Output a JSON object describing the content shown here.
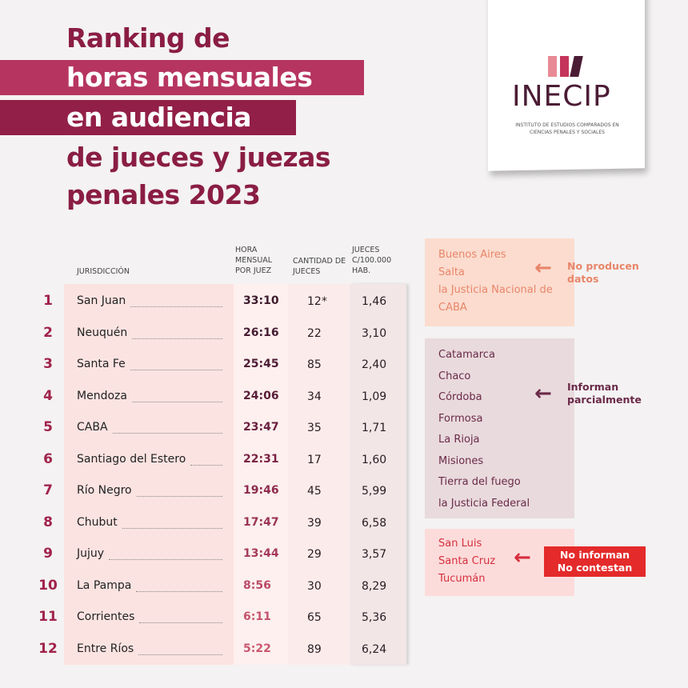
{
  "title": {
    "lines": [
      "Ranking de",
      "horas mensuales",
      "en audiencia",
      "de jueces y juezas",
      "penales 2023"
    ]
  },
  "logo": {
    "name": "INECIP",
    "subtitle": "INSTITUTO DE ESTUDIOS COMPARADOS EN CIENCIAS PENALES Y SOCIALES",
    "bar_colors": [
      "#e88a95",
      "#c5355b",
      "#4b1c35"
    ]
  },
  "table": {
    "headers": {
      "jurisdiccion": "JURISDICCIÓN",
      "hora": "HORA MENSUAL POR JUEZ",
      "cantidad": "CANTIDAD DE JUECES",
      "jueces": "JUECES C/100.000 HAB."
    },
    "rows": [
      {
        "rank": "1",
        "name": "San Juan",
        "hora": "33:10",
        "cantidad": "12*",
        "jueces": "1,46",
        "hora_color": "#3d1a2c"
      },
      {
        "rank": "2",
        "name": "Neuquén",
        "hora": "26:16",
        "cantidad": "22",
        "jueces": "3,10",
        "hora_color": "#451b30"
      },
      {
        "rank": "3",
        "name": "Santa Fe",
        "hora": "25:45",
        "cantidad": "85",
        "jueces": "2,40",
        "hora_color": "#4f1c34"
      },
      {
        "rank": "4",
        "name": "Mendoza",
        "hora": "24:06",
        "cantidad": "34",
        "jueces": "1,09",
        "hora_color": "#5a1d38"
      },
      {
        "rank": "5",
        "name": "CABA",
        "hora": "23:47",
        "cantidad": "35",
        "jueces": "1,71",
        "hora_color": "#6a1f3e"
      },
      {
        "rank": "6",
        "name": "Santiago del Estero",
        "hora": "22:31",
        "cantidad": "17",
        "jueces": "1,60",
        "hora_color": "#7a2244"
      },
      {
        "rank": "7",
        "name": "Río Negro",
        "hora": "19:46",
        "cantidad": "45",
        "jueces": "5,99",
        "hora_color": "#8e2a4d"
      },
      {
        "rank": "8",
        "name": "Chubut",
        "hora": "17:47",
        "cantidad": "39",
        "jueces": "6,58",
        "hora_color": "#9a3254"
      },
      {
        "rank": "9",
        "name": "Jujuy",
        "hora": "13:44",
        "cantidad": "29",
        "jueces": "3,57",
        "hora_color": "#a63a5c"
      },
      {
        "rank": "10",
        "name": "La Pampa",
        "hora": "8:56",
        "cantidad": "30",
        "jueces": "8,29",
        "hora_color": "#bb4a66"
      },
      {
        "rank": "11",
        "name": "Corrientes",
        "hora": "6:11",
        "cantidad": "65",
        "jueces": "5,36",
        "hora_color": "#c4546c"
      },
      {
        "rank": "12",
        "name": "Entre Ríos",
        "hora": "5:22",
        "cantidad": "89",
        "jueces": "6,24",
        "hora_color": "#c9586f"
      }
    ]
  },
  "groups": [
    {
      "items": [
        "Buenos Aires",
        "Salta",
        "la Justicia Nacional de CABA"
      ],
      "label": "No producen datos",
      "bg": "#fbdccf",
      "color": "#e8866a"
    },
    {
      "items": [
        "Catamarca",
        "Chaco",
        "Córdoba",
        "Formosa",
        "La Rioja",
        "Misiones",
        "Tierra del fuego",
        "la Justicia Federal"
      ],
      "label": "Informan parcialmente",
      "bg": "#e9dadd",
      "color": "#6a2a48"
    },
    {
      "items": [
        "San Luis",
        "Santa Cruz",
        "Tucumán"
      ],
      "label": "No informan No contestan",
      "label_lines": [
        "No informan",
        "No contestan"
      ],
      "bg": "#fcdcdb",
      "color": "#d62f3d",
      "label_bg": "#e42a2a"
    }
  ]
}
